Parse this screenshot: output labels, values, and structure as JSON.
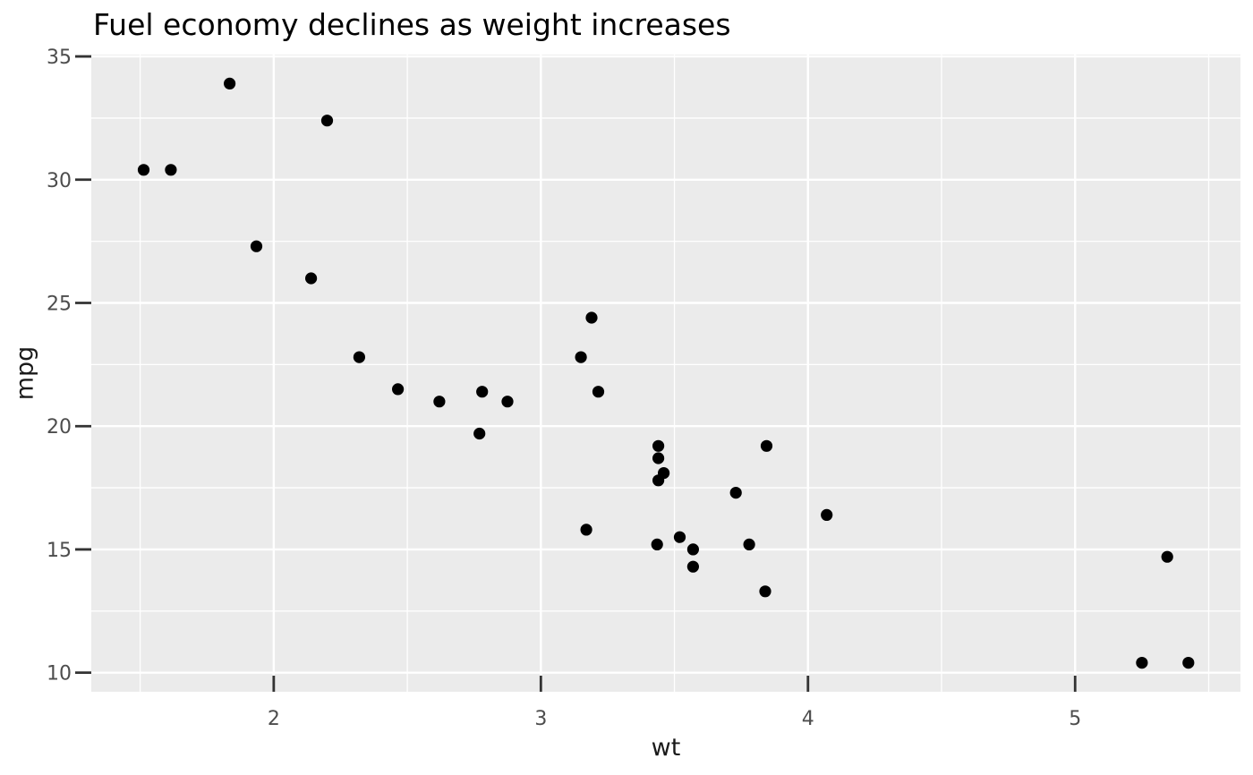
{
  "chart_data": {
    "type": "scatter",
    "title": "Fuel economy declines as weight increases",
    "xlabel": "wt",
    "ylabel": "mpg",
    "xlim": [
      1.317,
      5.619
    ],
    "ylim": [
      9.225,
      35.075
    ],
    "x_ticks": [
      2,
      3,
      4,
      5
    ],
    "y_ticks": [
      10,
      15,
      20,
      25,
      30,
      35
    ],
    "x_minor_ticks": [
      1.5,
      2.5,
      3.5,
      4.5,
      5.5
    ],
    "y_minor_ticks": [
      12.5,
      17.5,
      22.5,
      27.5,
      32.5
    ],
    "grid": true,
    "legend": false,
    "points": [
      [
        2.62,
        21.0
      ],
      [
        2.875,
        21.0
      ],
      [
        2.32,
        22.8
      ],
      [
        3.215,
        21.4
      ],
      [
        3.44,
        18.7
      ],
      [
        3.46,
        18.1
      ],
      [
        3.57,
        14.3
      ],
      [
        3.19,
        24.4
      ],
      [
        3.15,
        22.8
      ],
      [
        3.44,
        19.2
      ],
      [
        3.44,
        17.8
      ],
      [
        4.07,
        16.4
      ],
      [
        3.73,
        17.3
      ],
      [
        3.78,
        15.2
      ],
      [
        5.25,
        10.4
      ],
      [
        5.424,
        10.4
      ],
      [
        5.345,
        14.7
      ],
      [
        2.2,
        32.4
      ],
      [
        1.615,
        30.4
      ],
      [
        1.835,
        33.9
      ],
      [
        2.465,
        21.5
      ],
      [
        3.52,
        15.5
      ],
      [
        3.435,
        15.2
      ],
      [
        3.84,
        13.3
      ],
      [
        3.845,
        19.2
      ],
      [
        1.935,
        27.3
      ],
      [
        2.14,
        26.0
      ],
      [
        1.513,
        30.4
      ],
      [
        3.17,
        15.8
      ],
      [
        2.77,
        19.7
      ],
      [
        3.57,
        15.0
      ],
      [
        2.78,
        21.4
      ]
    ],
    "colors": {
      "page_bg": "#FFFFFF",
      "panel_bg": "#EBEBEB",
      "grid": "#FFFFFF",
      "point": "#000000",
      "tick_mark": "#333333",
      "tick_label": "#4D4D4D",
      "title": "#000000",
      "axis_title": "#1a1a1a"
    }
  }
}
